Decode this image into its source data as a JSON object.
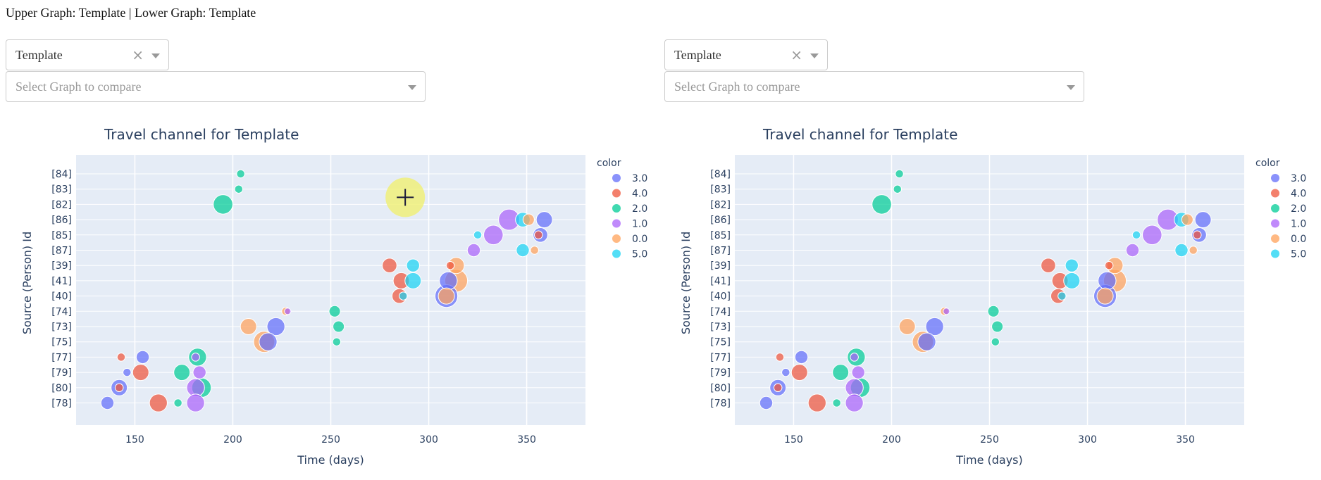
{
  "header": {
    "text": "Upper Graph: Template | Lower Graph: Template"
  },
  "panels": [
    {
      "id": "left",
      "dropdown_value": "Template",
      "compare_placeholder": "Select Graph to compare"
    },
    {
      "id": "right",
      "dropdown_value": "Template",
      "compare_placeholder": "Select Graph to compare"
    }
  ],
  "colors": {
    "3.0": "#636efa",
    "4.0": "#ef553b",
    "2.0": "#00cc96",
    "1.0": "#ab63fa",
    "0.0": "#ffa15a",
    "5.0": "#19d3f3",
    "plot_bg": "#e5ecf6",
    "cursor_highlight": "#f0f07a"
  },
  "chart_data": {
    "type": "scatter",
    "title": "Travel channel for Template",
    "xlabel": "Time (days)",
    "ylabel": "Source (Person) Id",
    "xlim": [
      120,
      380
    ],
    "xticks": [
      150,
      200,
      250,
      300,
      350
    ],
    "categories": [
      "[84]",
      "[83]",
      "[82]",
      "[86]",
      "[85]",
      "[87]",
      "[39]",
      "[41]",
      "[40]",
      "[74]",
      "[73]",
      "[75]",
      "[77]",
      "[79]",
      "[80]",
      "[78]"
    ],
    "legend_title": "color",
    "legend": [
      "3.0",
      "4.0",
      "2.0",
      "1.0",
      "0.0",
      "5.0"
    ],
    "points": [
      {
        "x": 204,
        "y": "[84]",
        "c": "2.0",
        "s": 5
      },
      {
        "x": 203,
        "y": "[83]",
        "c": "2.0",
        "s": 5
      },
      {
        "x": 195,
        "y": "[82]",
        "c": "2.0",
        "s": 12
      },
      {
        "x": 359,
        "y": "[86]",
        "c": "3.0",
        "s": 10
      },
      {
        "x": 341,
        "y": "[86]",
        "c": "1.0",
        "s": 13
      },
      {
        "x": 351,
        "y": "[86]",
        "c": "0.0",
        "s": 7
      },
      {
        "x": 348,
        "y": "[86]",
        "c": "5.0",
        "s": 9
      },
      {
        "x": 357,
        "y": "[85]",
        "c": "3.0",
        "s": 9
      },
      {
        "x": 356,
        "y": "[85]",
        "c": "4.0",
        "s": 5
      },
      {
        "x": 333,
        "y": "[85]",
        "c": "1.0",
        "s": 12
      },
      {
        "x": 325,
        "y": "[85]",
        "c": "5.0",
        "s": 5
      },
      {
        "x": 323,
        "y": "[87]",
        "c": "1.0",
        "s": 8
      },
      {
        "x": 348,
        "y": "[87]",
        "c": "5.0",
        "s": 8
      },
      {
        "x": 354,
        "y": "[87]",
        "c": "0.0",
        "s": 5
      },
      {
        "x": 280,
        "y": "[39]",
        "c": "4.0",
        "s": 9
      },
      {
        "x": 292,
        "y": "[39]",
        "c": "5.0",
        "s": 8
      },
      {
        "x": 314,
        "y": "[39]",
        "c": "0.0",
        "s": 10
      },
      {
        "x": 311,
        "y": "[39]",
        "c": "4.0",
        "s": 5
      },
      {
        "x": 286,
        "y": "[41]",
        "c": "4.0",
        "s": 10
      },
      {
        "x": 292,
        "y": "[41]",
        "c": "5.0",
        "s": 10
      },
      {
        "x": 310,
        "y": "[41]",
        "c": "3.0",
        "s": 11
      },
      {
        "x": 314,
        "y": "[41]",
        "c": "0.0",
        "s": 14
      },
      {
        "x": 285,
        "y": "[40]",
        "c": "4.0",
        "s": 9
      },
      {
        "x": 287,
        "y": "[40]",
        "c": "5.0",
        "s": 5
      },
      {
        "x": 309,
        "y": "[40]",
        "c": "3.0",
        "s": 14
      },
      {
        "x": 309,
        "y": "[40]",
        "c": "0.0",
        "s": 10
      },
      {
        "x": 228,
        "y": "[74]",
        "c": "1.0",
        "s": 4
      },
      {
        "x": 227,
        "y": "[74]",
        "c": "0.0",
        "s": 5
      },
      {
        "x": 252,
        "y": "[74]",
        "c": "2.0",
        "s": 7
      },
      {
        "x": 208,
        "y": "[73]",
        "c": "0.0",
        "s": 10
      },
      {
        "x": 222,
        "y": "[73]",
        "c": "3.0",
        "s": 11
      },
      {
        "x": 254,
        "y": "[73]",
        "c": "2.0",
        "s": 7
      },
      {
        "x": 218,
        "y": "[75]",
        "c": "3.0",
        "s": 11
      },
      {
        "x": 216,
        "y": "[75]",
        "c": "0.0",
        "s": 13
      },
      {
        "x": 253,
        "y": "[75]",
        "c": "2.0",
        "s": 5
      },
      {
        "x": 143,
        "y": "[77]",
        "c": "4.0",
        "s": 5
      },
      {
        "x": 154,
        "y": "[77]",
        "c": "3.0",
        "s": 8
      },
      {
        "x": 182,
        "y": "[77]",
        "c": "2.0",
        "s": 11
      },
      {
        "x": 181,
        "y": "[77]",
        "c": "1.0",
        "s": 5
      },
      {
        "x": 146,
        "y": "[79]",
        "c": "3.0",
        "s": 5
      },
      {
        "x": 153,
        "y": "[79]",
        "c": "4.0",
        "s": 10
      },
      {
        "x": 174,
        "y": "[79]",
        "c": "2.0",
        "s": 10
      },
      {
        "x": 183,
        "y": "[79]",
        "c": "1.0",
        "s": 8
      },
      {
        "x": 142,
        "y": "[80]",
        "c": "3.0",
        "s": 10
      },
      {
        "x": 142,
        "y": "[80]",
        "c": "4.0",
        "s": 5
      },
      {
        "x": 184,
        "y": "[80]",
        "c": "2.0",
        "s": 12
      },
      {
        "x": 181,
        "y": "[80]",
        "c": "1.0",
        "s": 11
      },
      {
        "x": 136,
        "y": "[78]",
        "c": "3.0",
        "s": 8
      },
      {
        "x": 162,
        "y": "[78]",
        "c": "4.0",
        "s": 11
      },
      {
        "x": 172,
        "y": "[78]",
        "c": "2.0",
        "s": 5
      },
      {
        "x": 181,
        "y": "[78]",
        "c": "1.0",
        "s": 11
      }
    ]
  }
}
